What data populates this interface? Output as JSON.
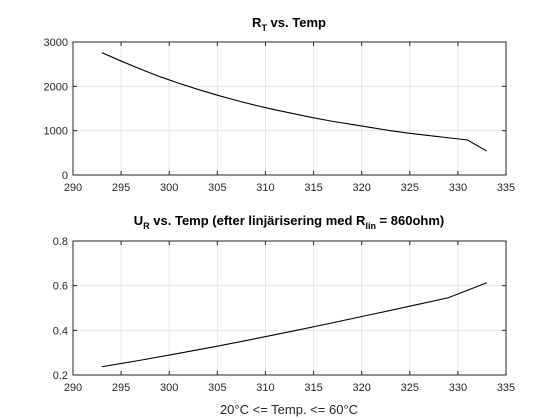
{
  "chart_data": [
    {
      "type": "line",
      "title": {
        "main": "R",
        "sub": "T",
        "rest": " vs. Temp"
      },
      "xlabel": "",
      "ylabel": "",
      "xlim": [
        290,
        335
      ],
      "ylim": [
        0,
        3000
      ],
      "xticks": [
        290,
        295,
        300,
        305,
        310,
        315,
        320,
        325,
        330,
        335
      ],
      "yticks": [
        0,
        1000,
        2000,
        3000
      ],
      "grid": true,
      "series": [
        {
          "x": [
            293,
            295,
            297,
            299,
            301,
            303,
            305,
            307,
            309,
            311,
            313,
            315,
            317,
            319,
            321,
            323,
            325,
            327,
            329,
            331,
            333
          ],
          "y": [
            2760,
            2570,
            2390,
            2220,
            2070,
            1930,
            1800,
            1680,
            1570,
            1470,
            1380,
            1290,
            1210,
            1140,
            1070,
            1000,
            940,
            890,
            840,
            790,
            540
          ]
        }
      ]
    },
    {
      "type": "line",
      "title": {
        "part1": "U",
        "sub1": "R",
        "part2": " vs. Temp (efter linjärisering med R",
        "sub2": "lin",
        "part3": " = 860ohm)"
      },
      "xlabel": "20°C <= Temp. <= 60°C",
      "ylabel": "",
      "xlim": [
        290,
        335
      ],
      "ylim": [
        0.2,
        0.8
      ],
      "xticks": [
        290,
        295,
        300,
        305,
        310,
        315,
        320,
        325,
        330,
        335
      ],
      "yticks": [
        0.2,
        0.4,
        0.6,
        0.8
      ],
      "grid": true,
      "series": [
        {
          "x": [
            293,
            297,
            301,
            305,
            309,
            313,
            317,
            321,
            325,
            329,
            333
          ],
          "y": [
            0.237,
            0.266,
            0.297,
            0.329,
            0.363,
            0.398,
            0.434,
            0.471,
            0.508,
            0.546,
            0.613
          ]
        }
      ]
    }
  ]
}
